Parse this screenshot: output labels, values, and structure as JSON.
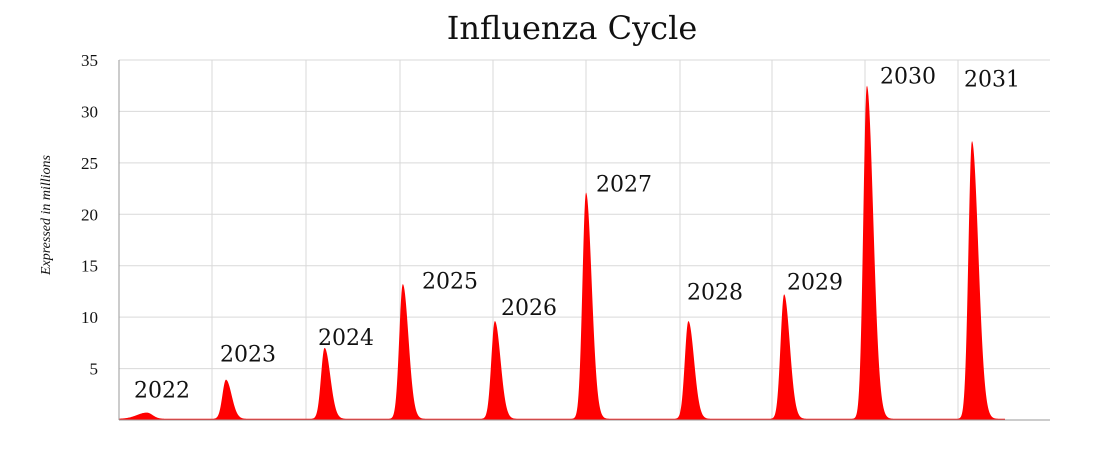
{
  "chart_data": {
    "type": "area",
    "title": "Influenza Cycle",
    "xlabel": "",
    "ylabel": "Expressed in millions",
    "ylim": [
      0,
      35
    ],
    "yticks": [
      5,
      10,
      15,
      20,
      25,
      30,
      35
    ],
    "grid": true,
    "color": "#ff0000",
    "x_period_labels": [
      "2022",
      "2023",
      "2024",
      "2025",
      "2026",
      "2027",
      "2028",
      "2029",
      "2030",
      "2031"
    ],
    "season_peaks": [
      {
        "season": "2022",
        "peak": 0.6
      },
      {
        "season": "2023",
        "peak": 3.8
      },
      {
        "season": "2024",
        "peak": 6.9
      },
      {
        "season": "2025",
        "peak": 13.1
      },
      {
        "season": "2026",
        "peak": 9.5
      },
      {
        "season": "2027",
        "peak": 22.0
      },
      {
        "season": "2028",
        "peak": 9.5
      },
      {
        "season": "2029",
        "peak": 12.1
      },
      {
        "season": "2030",
        "peak": 32.4
      },
      {
        "season": "2031",
        "peak": 27.0
      }
    ],
    "annotations": [
      {
        "text": "2022",
        "season": "2022",
        "y": 2.2
      },
      {
        "text": "2023",
        "season": "2023",
        "y": 5.7
      },
      {
        "text": "2024",
        "season": "2024",
        "y": 7.3
      },
      {
        "text": "2025",
        "season": "2025",
        "y": 12.8
      },
      {
        "text": "2026",
        "season": "2026",
        "y": 10.2
      },
      {
        "text": "2027",
        "season": "2027",
        "y": 22.2
      },
      {
        "text": "2028",
        "season": "2028",
        "y": 11.7
      },
      {
        "text": "2029",
        "season": "2029",
        "y": 12.7
      },
      {
        "text": "2030",
        "season": "2030",
        "y": 32.7
      },
      {
        "text": "2031",
        "season": "2031",
        "y": 32.4
      }
    ]
  }
}
